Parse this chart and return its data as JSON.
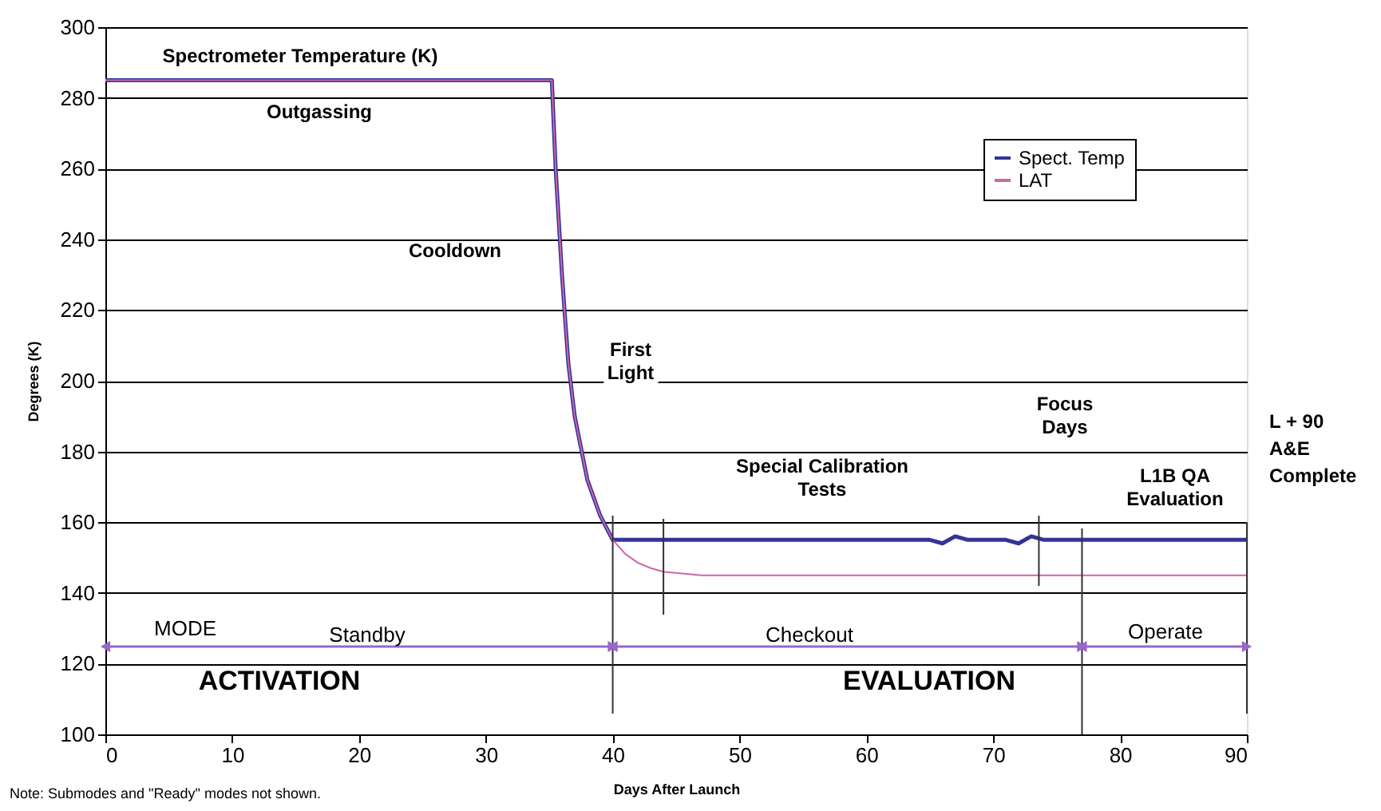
{
  "chart_data": {
    "type": "line",
    "xlabel": "Days After Launch",
    "ylabel": "Degrees (K)",
    "xlim": [
      0,
      90
    ],
    "xticks": [
      0,
      10,
      20,
      30,
      40,
      50,
      60,
      70,
      80,
      90
    ],
    "ylim": [
      100,
      300
    ],
    "yticks": [
      100,
      120,
      140,
      160,
      180,
      200,
      220,
      240,
      260,
      280,
      300
    ],
    "grid": "y",
    "legend": "top right",
    "series": [
      {
        "name": "Spect. Temp",
        "color": "#333399",
        "x": [
          0,
          35.2,
          35.5,
          36,
          36.5,
          37,
          38,
          39,
          40,
          65,
          66,
          67,
          68,
          71,
          72,
          73,
          74,
          90
        ],
        "values": [
          285,
          285,
          260,
          230,
          205,
          190,
          172,
          162,
          155,
          155,
          154,
          156,
          155,
          155,
          154,
          156,
          155,
          155
        ]
      },
      {
        "name": "LAT",
        "color": "#cc66aa",
        "x": [
          0,
          35.2,
          35.5,
          36,
          36.5,
          37,
          38,
          39,
          40,
          41,
          42,
          43,
          44,
          47,
          90
        ],
        "values": [
          285,
          285,
          260,
          230,
          205,
          190,
          172,
          162,
          155,
          151,
          148.5,
          147,
          146,
          145,
          145
        ]
      }
    ],
    "ref_lines": [
      {
        "axis": "x",
        "value": 40
      },
      {
        "axis": "x",
        "value": 44
      },
      {
        "axis": "x",
        "value": 73.6
      },
      {
        "axis": "x",
        "value": 77
      },
      {
        "axis": "x",
        "value": 90
      }
    ],
    "annotations": [
      "Spectrometer Temperature (K)",
      "Outgassing",
      "Cooldown",
      "First\nLight",
      "Special Calibration\nTests",
      "Focus\nDays",
      "L1B QA\nEvaluation",
      "MODE",
      "Standby",
      "Checkout",
      "Operate",
      "ACTIVATION",
      "EVALUATION",
      "L + 90\nA&E\nComplete",
      "Note:  Submodes and \"Ready\" modes not shown."
    ]
  }
}
